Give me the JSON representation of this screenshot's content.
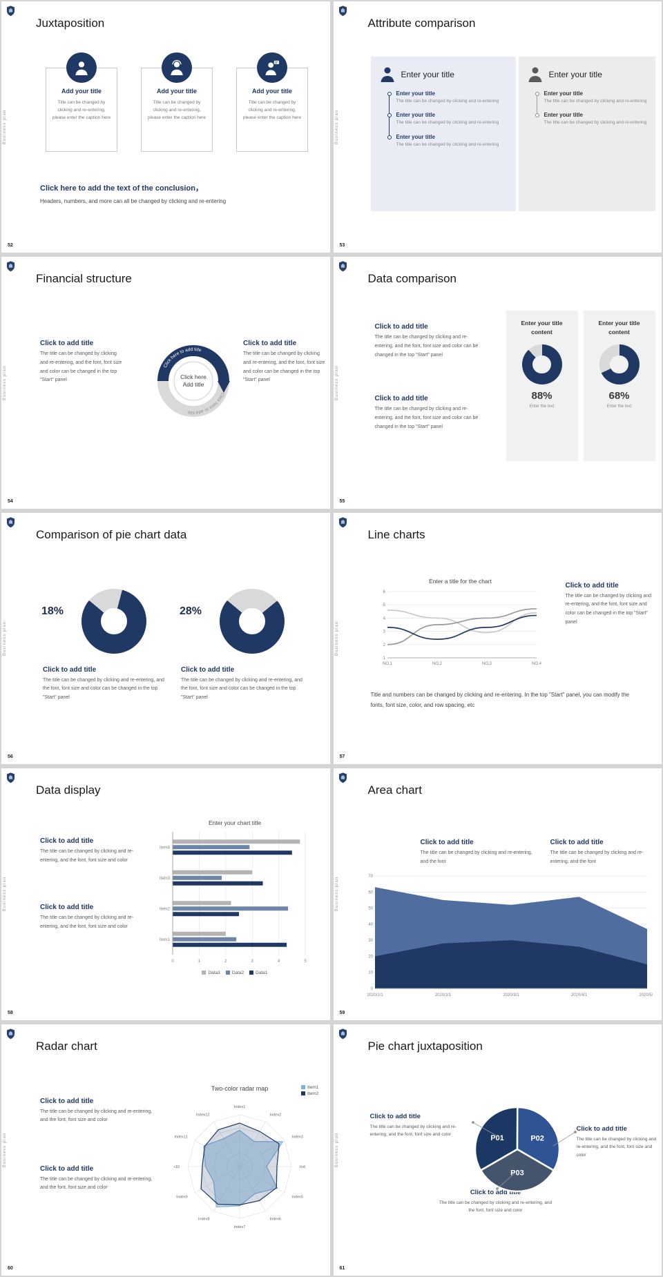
{
  "colors": {
    "navy": "#1f3864",
    "steel": "#6e85a8",
    "light_gray": "#d9d9d9",
    "panel_blue": "#e9ecf4",
    "panel_gray": "#ececec",
    "page_bg": "#d4d4d4"
  },
  "icon_names": [
    "shield-icon",
    "person-icon",
    "operator-person-icon",
    "consultant-person-icon"
  ],
  "common": {
    "side_text": "Business plan"
  },
  "slides": [
    {
      "number": "52",
      "title": "Juxtaposition",
      "cards": [
        {
          "title": "Add your title",
          "caption": "Title can be changed by clicking and re-entering, please enter the caption here"
        },
        {
          "title": "Add your title",
          "caption": "Title can be changed by clicking and re-entering, please enter the caption here"
        },
        {
          "title": "Add your title",
          "caption": "Title can be changed by clicking and re-entering, please enter the caption here"
        }
      ],
      "conclusion_title": "Click here to add the text of the conclusion，",
      "conclusion_text": "Headers, numbers, and more can all be changed by clicking and re-entering"
    },
    {
      "number": "53",
      "title": "Attribute comparison",
      "left_panel": {
        "header": "Enter your title",
        "items": [
          {
            "title": "Enter your title",
            "text": "The title can be changed by clicking and re-entering"
          },
          {
            "title": "Enter your title",
            "text": "The title can be changed by clicking and re-entering"
          },
          {
            "title": "Enter your title",
            "text": "The title can be changed by clicking and re-entering"
          }
        ]
      },
      "right_panel": {
        "header": "Enter your title",
        "items": [
          {
            "title": "Enter your title",
            "text": "The title can be changed by clicking and re-entering"
          },
          {
            "title": "Enter your title",
            "text": "The title can be changed by clicking and re-entering"
          }
        ]
      }
    },
    {
      "number": "54",
      "title": "Financial structure",
      "blocks": [
        {
          "title": "Click to add title",
          "text": "The title can be changed by clicking and re-entering, and the font, font size and color can be changed in the top \"Start\" panel"
        },
        {
          "title": "Click to add title",
          "text": "The title can be changed by clicking and re-entering, and the font, font size and color can be changed in the top \"Start\" panel"
        }
      ],
      "center_line1": "Click here",
      "center_line2": "Add title",
      "arc_top_label": "Click here to add title",
      "arc_bottom_label": "Click here to add title"
    },
    {
      "number": "55",
      "title": "Data comparison",
      "blocks": [
        {
          "title": "Click to add title",
          "text": "The title can be changed by clicking and re-entering, and the font, font size and color can be changed in the top \"Start\" panel"
        },
        {
          "title": "Click to add title",
          "text": "The title can be changed by clicking and re-entering, and the font, font size and color can be changed in the top \"Start\" panel"
        }
      ],
      "cards": [
        {
          "header": "Enter your title content",
          "percent_label": "88%",
          "footer": "Enter the text"
        },
        {
          "header": "Enter your title content",
          "percent_label": "68%",
          "footer": "Enter the text"
        }
      ]
    },
    {
      "number": "56",
      "title": "Comparison of pie chart data",
      "groups": [
        {
          "percent_label": "18%",
          "block": {
            "title": "Click to add title",
            "text": "The title can be changed by clicking and re-entering, and the font, font size and color can be changed in the top \"Start\" panel"
          }
        },
        {
          "percent_label": "28%",
          "block": {
            "title": "Click to add title",
            "text": "The title can be changed by clicking and re-entering, and the font, font size and color can be changed in the top \"Start\" panel"
          }
        }
      ]
    },
    {
      "number": "57",
      "title": "Line charts",
      "chart_title": "Enter a title for the chart",
      "block": {
        "title": "Click to add title",
        "text": "The title can be changed by clicking and re-entering, and the font, font size and color can be changed in the top \"Start\" panel"
      },
      "footer_text": "Title and numbers can be changed by clicking and re-entering. In the top \"Start\" panel, you can modify the fonts, font size, color, and row spacing, etc"
    },
    {
      "number": "58",
      "title": "Data display",
      "chart_title": "Enter your chart title",
      "blocks": [
        {
          "title": "Click to add title",
          "text": "The title can be changed by clicking and re-entering, and the font, font size and color"
        },
        {
          "title": "Click to add title",
          "text": "The title can be changed by clicking and re-entering, and the font, font size and color"
        }
      ]
    },
    {
      "number": "59",
      "title": "Area chart",
      "blocks": [
        {
          "title": "Click to add title",
          "text": "The title can be changed by clicking and re-entering, and the font"
        },
        {
          "title": "Click to add title",
          "text": "The title can be changed by clicking and re-entering, and the font"
        }
      ]
    },
    {
      "number": "60",
      "title": "Radar chart",
      "chart_title": "Two-color radar map",
      "blocks": [
        {
          "title": "Click to add title",
          "text": "The title can be changed by clicking and re-entering, and the font, font size and color"
        },
        {
          "title": "Click to add title",
          "text": "The title can be changed by clicking and re-entering, and the font, font size and color"
        }
      ]
    },
    {
      "number": "61",
      "title": "Pie chart juxtaposition",
      "blocks": [
        {
          "title": "Click to add title",
          "text": "The title can be changed by clicking and re-entering, and the font, font size and color"
        },
        {
          "title": "Click to add title",
          "text": "The title can be changed by clicking and re-entering, and the font, font size and color"
        },
        {
          "title": "Click to add title",
          "text": "The title can be changed by clicking and re-entering, and the font, font size and color"
        }
      ]
    }
  ],
  "chart_data": [
    {
      "id": "donut88",
      "type": "donut",
      "from_deg": 0,
      "segments": [
        {
          "color": "#1f3864",
          "pct": 88
        },
        {
          "color": "#d9d9d9",
          "pct": 12
        }
      ]
    },
    {
      "id": "donut68",
      "type": "donut",
      "from_deg": 0,
      "segments": [
        {
          "color": "#1f3864",
          "pct": 68
        },
        {
          "color": "#d9d9d9",
          "pct": 32
        }
      ]
    },
    {
      "id": "donut18",
      "type": "donut",
      "from_deg": -50,
      "segments": [
        {
          "color": "#d9d9d9",
          "pct": 18
        },
        {
          "color": "#1f3864",
          "pct": 82
        }
      ]
    },
    {
      "id": "donut28",
      "type": "donut",
      "from_deg": -50,
      "segments": [
        {
          "color": "#d9d9d9",
          "pct": 28
        },
        {
          "color": "#1f3864",
          "pct": 72
        }
      ]
    },
    {
      "id": "line57",
      "type": "line",
      "title": "Enter a title for the chart",
      "x_labels": [
        "NO.1",
        "NO.2",
        "NO.3",
        "NO.4"
      ],
      "y_ticks": [
        1,
        2,
        3,
        4,
        5,
        6
      ],
      "ylim": [
        1,
        6
      ],
      "series": [
        {
          "name": "series-lightgray",
          "color": "#c9c9c9",
          "values": [
            4.6,
            4.0,
            2.9,
            4.4
          ]
        },
        {
          "name": "series-gray",
          "color": "#9a9a9a",
          "values": [
            2.0,
            3.5,
            4.0,
            4.7
          ]
        },
        {
          "name": "series-navy",
          "color": "#1f3864",
          "values": [
            3.3,
            2.4,
            3.3,
            4.2
          ]
        }
      ]
    },
    {
      "id": "bars58",
      "type": "hbar",
      "title": "Enter your chart title",
      "categories": [
        "Item1",
        "Item2",
        "Item3",
        "Item4"
      ],
      "x_ticks": [
        0,
        1,
        2,
        3,
        4,
        5
      ],
      "xlim": [
        0,
        5
      ],
      "series": [
        {
          "name": "Data3",
          "color": "#b3b3b3",
          "values": [
            2.0,
            2.2,
            3.0,
            4.8
          ]
        },
        {
          "name": "Data2",
          "color": "#6e85a8",
          "values": [
            2.4,
            4.35,
            1.85,
            2.9
          ]
        },
        {
          "name": "Data1",
          "color": "#1f3864",
          "values": [
            4.3,
            2.5,
            3.4,
            4.5
          ]
        }
      ],
      "legend": [
        {
          "label": "Data3",
          "color": "#b3b3b3"
        },
        {
          "label": "Data2",
          "color": "#6e85a8"
        },
        {
          "label": "Data1",
          "color": "#1f3864"
        }
      ]
    },
    {
      "id": "area59",
      "type": "area",
      "x_labels": [
        "2020/1/1",
        "2020/2/1",
        "2020/3/1",
        "2020/4/1",
        "2020/5/1"
      ],
      "y_ticks": [
        0,
        10,
        20,
        30,
        40,
        50,
        60,
        70
      ],
      "ylim": [
        0,
        70
      ],
      "series": [
        {
          "name": "upper",
          "color": "#4f6d9f",
          "values": [
            63,
            55,
            52,
            57,
            37
          ]
        },
        {
          "name": "lower",
          "color": "#203864",
          "values": [
            20,
            28,
            30,
            26,
            15
          ]
        }
      ]
    },
    {
      "id": "radar60",
      "type": "radar",
      "title": "Two-color radar map",
      "vmax": 5,
      "axes": [
        "Index1",
        "Index2",
        "Index3",
        "Index4",
        "Index5",
        "Index6",
        "Index7",
        "Index8",
        "Index9",
        "Index10",
        "Index11",
        "Index12"
      ],
      "series": [
        {
          "name": "Item1",
          "color": "#7fb3da",
          "fill": "rgba(127,179,218,0.45)",
          "values": [
            3.5,
            2.8,
            4.8,
            2.6,
            4.2,
            3.0,
            3.8,
            4.5,
            2.9,
            3.3,
            4.0,
            3.1
          ]
        },
        {
          "name": "Item2",
          "color": "#1f3864",
          "fill": "rgba(31,56,100,0.18)",
          "values": [
            4.2,
            3.9,
            4.4,
            3.6,
            4.1,
            3.8,
            3.7,
            4.2,
            4.3,
            3.6,
            3.9,
            4.1
          ]
        }
      ],
      "legend": [
        {
          "label": "Item1",
          "color": "#7fb3da"
        },
        {
          "label": "Item2",
          "color": "#1f3864"
        }
      ]
    },
    {
      "id": "pie61",
      "type": "pie",
      "rotate_deg": 240,
      "slices": [
        {
          "label": "P01",
          "pct": 33.4,
          "color": "#1b3764"
        },
        {
          "label": "P02",
          "pct": 33.3,
          "color": "#2f5496"
        },
        {
          "label": "P03",
          "pct": 33.3,
          "color": "#44546a"
        }
      ]
    }
  ]
}
